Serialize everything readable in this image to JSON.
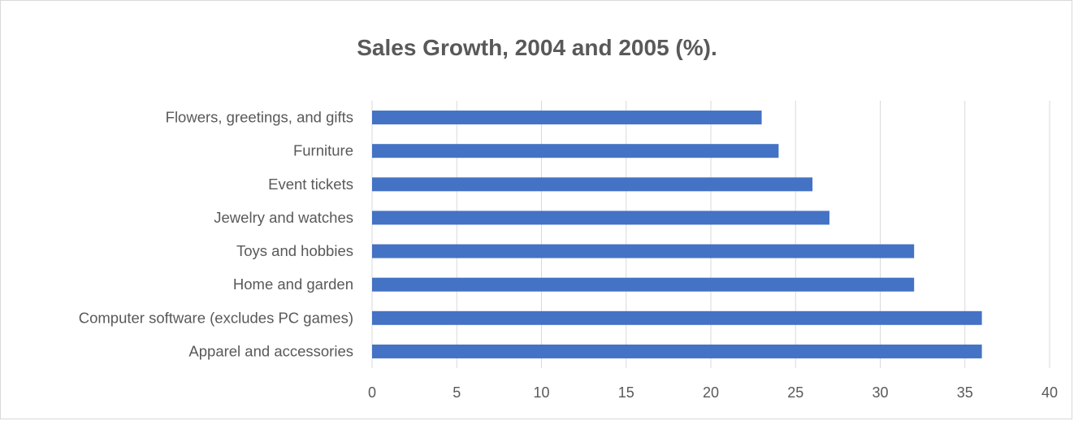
{
  "chart_data": {
    "type": "bar",
    "orientation": "horizontal",
    "title": "Sales Growth, 2004 and 2005 (%).",
    "xlabel": "",
    "ylabel": "",
    "categories": [
      "Flowers, greetings, and gifts",
      "Furniture",
      "Event tickets",
      "Jewelry and watches",
      "Toys and hobbies",
      "Home and garden",
      "Computer software (excludes PC games)",
      "Apparel and accessories"
    ],
    "values": [
      23,
      24,
      26,
      27,
      32,
      32,
      36,
      36
    ],
    "xlim": [
      0,
      40
    ],
    "xticks": [
      "0",
      "5",
      "10",
      "15",
      "20",
      "25",
      "30",
      "35",
      "40"
    ],
    "grid": "vertical",
    "legend": "none",
    "bar_color": "#4472c4",
    "grid_color": "#d9d9d9"
  }
}
